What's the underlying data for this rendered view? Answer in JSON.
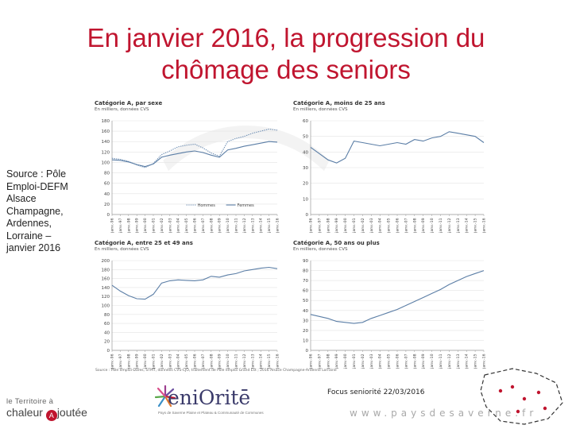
{
  "slide": {
    "title_line1": "En janvier 2016, la progression du",
    "title_line2": "chômage des seniors",
    "source": "Source : Pôle Emploi-DEFM Alsace Champagne, Ardennes, Lorraine – janvier 2016",
    "footnote": "Source : Pôle emploi-Dares, STMT, données CVS-CJO, traitement de Pôle emploi Grand Est ; 2016 Alsace Champagne-Ardenne Lorraine",
    "focus_text": "Focus seniorité 22/03/2016",
    "website": "www.paysdesaverne.fr",
    "logo_left_line1": "le Territoire à",
    "logo_left_line2a": "chaleur",
    "logo_left_o": "A",
    "logo_left_line2b": "joutée",
    "logo_mid_brand": "eniOritē",
    "logo_mid_tag": "Pays de Saverne Plaine et Plateau & Communauté de Communes"
  },
  "chart_data": [
    {
      "type": "line",
      "title": "Catégorie A, par sexe",
      "subtitle": "En milliers, données CVS",
      "x": [
        "janv.-96",
        "janv.-97",
        "janv.-98",
        "janv.-99",
        "janv.-00",
        "janv.-01",
        "janv.-02",
        "janv.-03",
        "janv.-04",
        "janv.-05",
        "janv.-06",
        "janv.-07",
        "janv.-08",
        "janv.-09",
        "janv.-10",
        "janv.-11",
        "janv.-12",
        "janv.-13",
        "janv.-14",
        "janv.-15",
        "janv.-16"
      ],
      "x_ticks": [
        "janv.-96",
        "janv.-97",
        "janv.-98",
        "janv.-99",
        "janv.-00",
        "janv.-01",
        "janv.-02",
        "janv.-03",
        "janv.-04",
        "janv.-05",
        "janv.-06",
        "janv.-07",
        "janv.-08",
        "janv.-09",
        "janv.-10",
        "janv.-11",
        "janv.-12",
        "janv.-13",
        "janv.-14",
        "janv.-15",
        "janv.-16"
      ],
      "ylim": [
        0,
        180
      ],
      "yticks": [
        0,
        20,
        40,
        60,
        80,
        100,
        120,
        140,
        160,
        180
      ],
      "series": [
        {
          "name": "Hommes",
          "style": "dotted",
          "color": "#6f8fb4",
          "values": [
            108,
            106,
            102,
            95,
            90,
            98,
            115,
            122,
            130,
            133,
            135,
            128,
            118,
            112,
            140,
            146,
            150,
            156,
            160,
            164,
            162
          ]
        },
        {
          "name": "Femmes",
          "style": "solid",
          "color": "#5b7ea6",
          "values": [
            105,
            104,
            101,
            96,
            92,
            97,
            110,
            114,
            117,
            120,
            122,
            119,
            114,
            110,
            124,
            127,
            131,
            134,
            137,
            140,
            139
          ]
        }
      ],
      "legend": "bottom"
    },
    {
      "type": "line",
      "title": "Catégorie A, moins de 25 ans",
      "subtitle": "En milliers, données CVS",
      "x": [
        "janv.-96",
        "janv.-97",
        "janv.-98",
        "janv.-99",
        "janv.-00",
        "janv.-01",
        "janv.-02",
        "janv.-03",
        "janv.-04",
        "janv.-05",
        "janv.-06",
        "janv.-07",
        "janv.-08",
        "janv.-09",
        "janv.-10",
        "janv.-11",
        "janv.-12",
        "janv.-13",
        "janv.-14",
        "janv.-15",
        "janv.-16"
      ],
      "x_ticks": [
        "janv.-96",
        "janv.-97",
        "janv.-98",
        "janv.-99",
        "janv.-00",
        "janv.-01",
        "janv.-02",
        "janv.-03",
        "janv.-04",
        "janv.-05",
        "janv.-06",
        "janv.-07",
        "janv.-08",
        "janv.-09",
        "janv.-10",
        "janv.-11",
        "janv.-12",
        "janv.-13",
        "janv.-14",
        "janv.-15",
        "janv.-16"
      ],
      "ylim": [
        0,
        60
      ],
      "yticks": [
        0,
        10,
        20,
        30,
        40,
        50,
        60
      ],
      "series": [
        {
          "name": "",
          "style": "solid",
          "color": "#5b7ea6",
          "values": [
            43,
            39,
            35,
            33,
            36,
            47,
            46,
            45,
            44,
            45,
            46,
            45,
            48,
            47,
            49,
            50,
            53,
            52,
            51,
            50,
            46
          ]
        }
      ]
    },
    {
      "type": "line",
      "title": "Catégorie A, entre 25 et 49 ans",
      "subtitle": "En milliers, données CVS",
      "x": [
        "janv.-96",
        "janv.-97",
        "janv.-98",
        "janv.-99",
        "janv.-00",
        "janv.-01",
        "janv.-02",
        "janv.-03",
        "janv.-04",
        "janv.-05",
        "janv.-06",
        "janv.-07",
        "janv.-08",
        "janv.-09",
        "janv.-10",
        "janv.-11",
        "janv.-12",
        "janv.-13",
        "janv.-14",
        "janv.-15",
        "janv.-16"
      ],
      "x_ticks": [
        "janv.-96",
        "janv.-97",
        "janv.-98",
        "janv.-99",
        "janv.-00",
        "janv.-01",
        "janv.-02",
        "janv.-03",
        "janv.-04",
        "janv.-05",
        "janv.-06",
        "janv.-07",
        "janv.-08",
        "janv.-09",
        "janv.-10",
        "janv.-11",
        "janv.-12",
        "janv.-13",
        "janv.-14",
        "janv.-15",
        "janv.-16"
      ],
      "ylim": [
        0,
        200
      ],
      "yticks": [
        0,
        20,
        40,
        60,
        80,
        100,
        120,
        140,
        160,
        180,
        200
      ],
      "series": [
        {
          "name": "",
          "style": "solid",
          "color": "#5b7ea6",
          "values": [
            145,
            132,
            122,
            115,
            114,
            125,
            150,
            155,
            157,
            156,
            155,
            157,
            165,
            163,
            168,
            171,
            177,
            180,
            183,
            185,
            182
          ]
        }
      ]
    },
    {
      "type": "line",
      "title": "Catégorie A, 50 ans ou plus",
      "subtitle": "En milliers, données CVS",
      "x": [
        "janv.-96",
        "janv.-97",
        "janv.-98",
        "janv.-99",
        "janv.-00",
        "janv.-01",
        "janv.-02",
        "janv.-03",
        "janv.-04",
        "janv.-05",
        "janv.-06",
        "janv.-07",
        "janv.-08",
        "janv.-09",
        "janv.-10",
        "janv.-11",
        "janv.-12",
        "janv.-13",
        "janv.-14",
        "janv.-15",
        "janv.-16"
      ],
      "x_ticks": [
        "janv.-96",
        "janv.-97",
        "janv.-98",
        "janv.-99",
        "janv.-00",
        "janv.-01",
        "janv.-02",
        "janv.-03",
        "janv.-04",
        "janv.-05",
        "janv.-06",
        "janv.-07",
        "janv.-08",
        "janv.-09",
        "janv.-10",
        "janv.-11",
        "janv.-12",
        "janv.-13",
        "janv.-14",
        "janv.-15",
        "janv.-16"
      ],
      "ylim": [
        0,
        90
      ],
      "yticks": [
        0,
        10,
        20,
        30,
        40,
        50,
        60,
        70,
        80,
        90
      ],
      "series": [
        {
          "name": "",
          "style": "solid",
          "color": "#5b7ea6",
          "values": [
            36,
            34,
            32,
            29,
            28,
            27,
            28,
            32,
            35,
            38,
            41,
            45,
            49,
            53,
            57,
            61,
            66,
            70,
            74,
            77,
            80
          ]
        }
      ]
    }
  ]
}
